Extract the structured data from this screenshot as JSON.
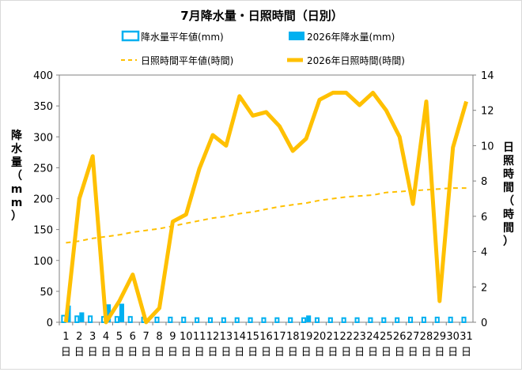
{
  "chart_data": {
    "type": "bar+line",
    "title": "7月降水量・日照時間（日別）",
    "categories": [
      "1",
      "2",
      "3",
      "4",
      "5",
      "6",
      "7",
      "8",
      "9",
      "10",
      "11",
      "12",
      "13",
      "14",
      "15",
      "16",
      "17",
      "18",
      "19",
      "20",
      "21",
      "22",
      "23",
      "24",
      "25",
      "26",
      "27",
      "28",
      "29",
      "30",
      "31"
    ],
    "day_suffix": "日",
    "ylabel_left": "降水量（mm）",
    "ylabel_right": "日照時間（時間）",
    "y_left_ticks": [
      "0",
      "50",
      "100",
      "150",
      "200",
      "250",
      "300",
      "350",
      "400"
    ],
    "y_right_ticks": [
      "0",
      "2",
      "4",
      "6",
      "8",
      "10",
      "12",
      "14"
    ],
    "ylim_left": [
      0,
      400
    ],
    "ylim_right": [
      0,
      14
    ],
    "grid": false,
    "legend_position": "top",
    "series": [
      {
        "name": "降水量平年値(mm)",
        "kind": "bar",
        "axis": "left",
        "color": "#00b0f0",
        "style": "outline",
        "values": [
          12,
          11,
          11,
          10,
          10,
          10,
          9,
          9,
          9,
          9,
          8,
          8,
          8,
          8,
          8,
          8,
          8,
          8,
          8,
          8,
          8,
          8,
          8,
          8,
          8,
          8,
          9,
          9,
          9,
          9,
          9
        ]
      },
      {
        "name": "2026年降水量(mm)",
        "kind": "bar",
        "axis": "left",
        "color": "#00b0f0",
        "style": "filled",
        "values": [
          27,
          16,
          0,
          29,
          30,
          0,
          0,
          0,
          0,
          0,
          0,
          0,
          0,
          0,
          0,
          0,
          0,
          0,
          11,
          0,
          0,
          0,
          0,
          0,
          0,
          0,
          0,
          0,
          0,
          0,
          0
        ]
      },
      {
        "name": "日照時間平年値(時間)",
        "kind": "line",
        "axis": "right",
        "color": "#ffc000",
        "style": "dashed",
        "values": [
          4.5,
          4.6,
          4.75,
          4.85,
          4.95,
          5.1,
          5.2,
          5.3,
          5.45,
          5.6,
          5.75,
          5.9,
          6.0,
          6.15,
          6.25,
          6.4,
          6.55,
          6.65,
          6.75,
          6.9,
          7.0,
          7.1,
          7.15,
          7.2,
          7.35,
          7.4,
          7.45,
          7.5,
          7.55,
          7.6,
          7.6
        ]
      },
      {
        "name": "2026年日照時間(時間)",
        "kind": "line",
        "axis": "right",
        "color": "#ffc000",
        "style": "solid",
        "values": [
          0.0,
          7.0,
          9.4,
          0.0,
          1.2,
          2.7,
          0.0,
          0.8,
          5.7,
          6.1,
          8.7,
          10.6,
          10.0,
          12.8,
          11.7,
          11.9,
          11.1,
          9.7,
          10.4,
          12.6,
          13.0,
          13.0,
          12.3,
          13.0,
          12.0,
          10.5,
          6.7,
          12.5,
          1.2,
          9.9,
          12.5
        ]
      }
    ]
  }
}
